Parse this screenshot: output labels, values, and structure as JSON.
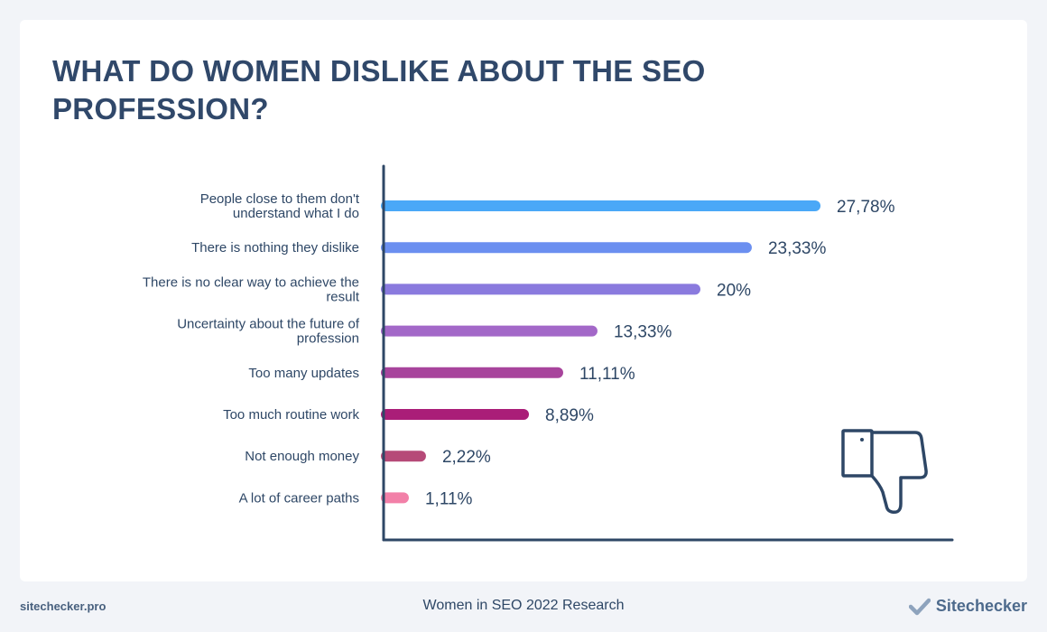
{
  "title": "WHAT DO WOMEN DISLIKE ABOUT THE SEO PROFESSION?",
  "chart_data": {
    "type": "bar",
    "orientation": "horizontal",
    "categories": [
      [
        "People close to them don't",
        "understand what I do"
      ],
      [
        "There is nothing they dislike"
      ],
      [
        "There is no clear way to achieve the",
        "result"
      ],
      [
        "Uncertainty about the future of",
        "profession"
      ],
      [
        "Too many updates"
      ],
      [
        "Too much routine work"
      ],
      [
        "Not enough money"
      ],
      [
        "A lot of career paths"
      ]
    ],
    "values": [
      27.78,
      23.33,
      20,
      13.33,
      11.11,
      8.89,
      2.22,
      1.11
    ],
    "value_labels": [
      "27,78%",
      "23,33%",
      "20%",
      "13,33%",
      "11,11%",
      "8,89%",
      "2,22%",
      "1,11%"
    ],
    "bar_colors": [
      "#4aa8f7",
      "#6b8ff0",
      "#8a7ade",
      "#a368c8",
      "#a8449c",
      "#aa1e78",
      "#b64a78",
      "#f280a8"
    ],
    "xlim": [
      0,
      30
    ],
    "grid": false,
    "title": "WHAT DO WOMEN DISLIKE ABOUT THE SEO PROFESSION?"
  },
  "colors": {
    "text": "#2e4766",
    "axis": "#2e4766",
    "icon": "#2e4766"
  },
  "icon": "thumbs-down-icon",
  "footer": {
    "left": "sitechecker.pro",
    "center": "Women in SEO 2022 Research",
    "brand": "Sitechecker",
    "brand_icon": "check-icon"
  }
}
